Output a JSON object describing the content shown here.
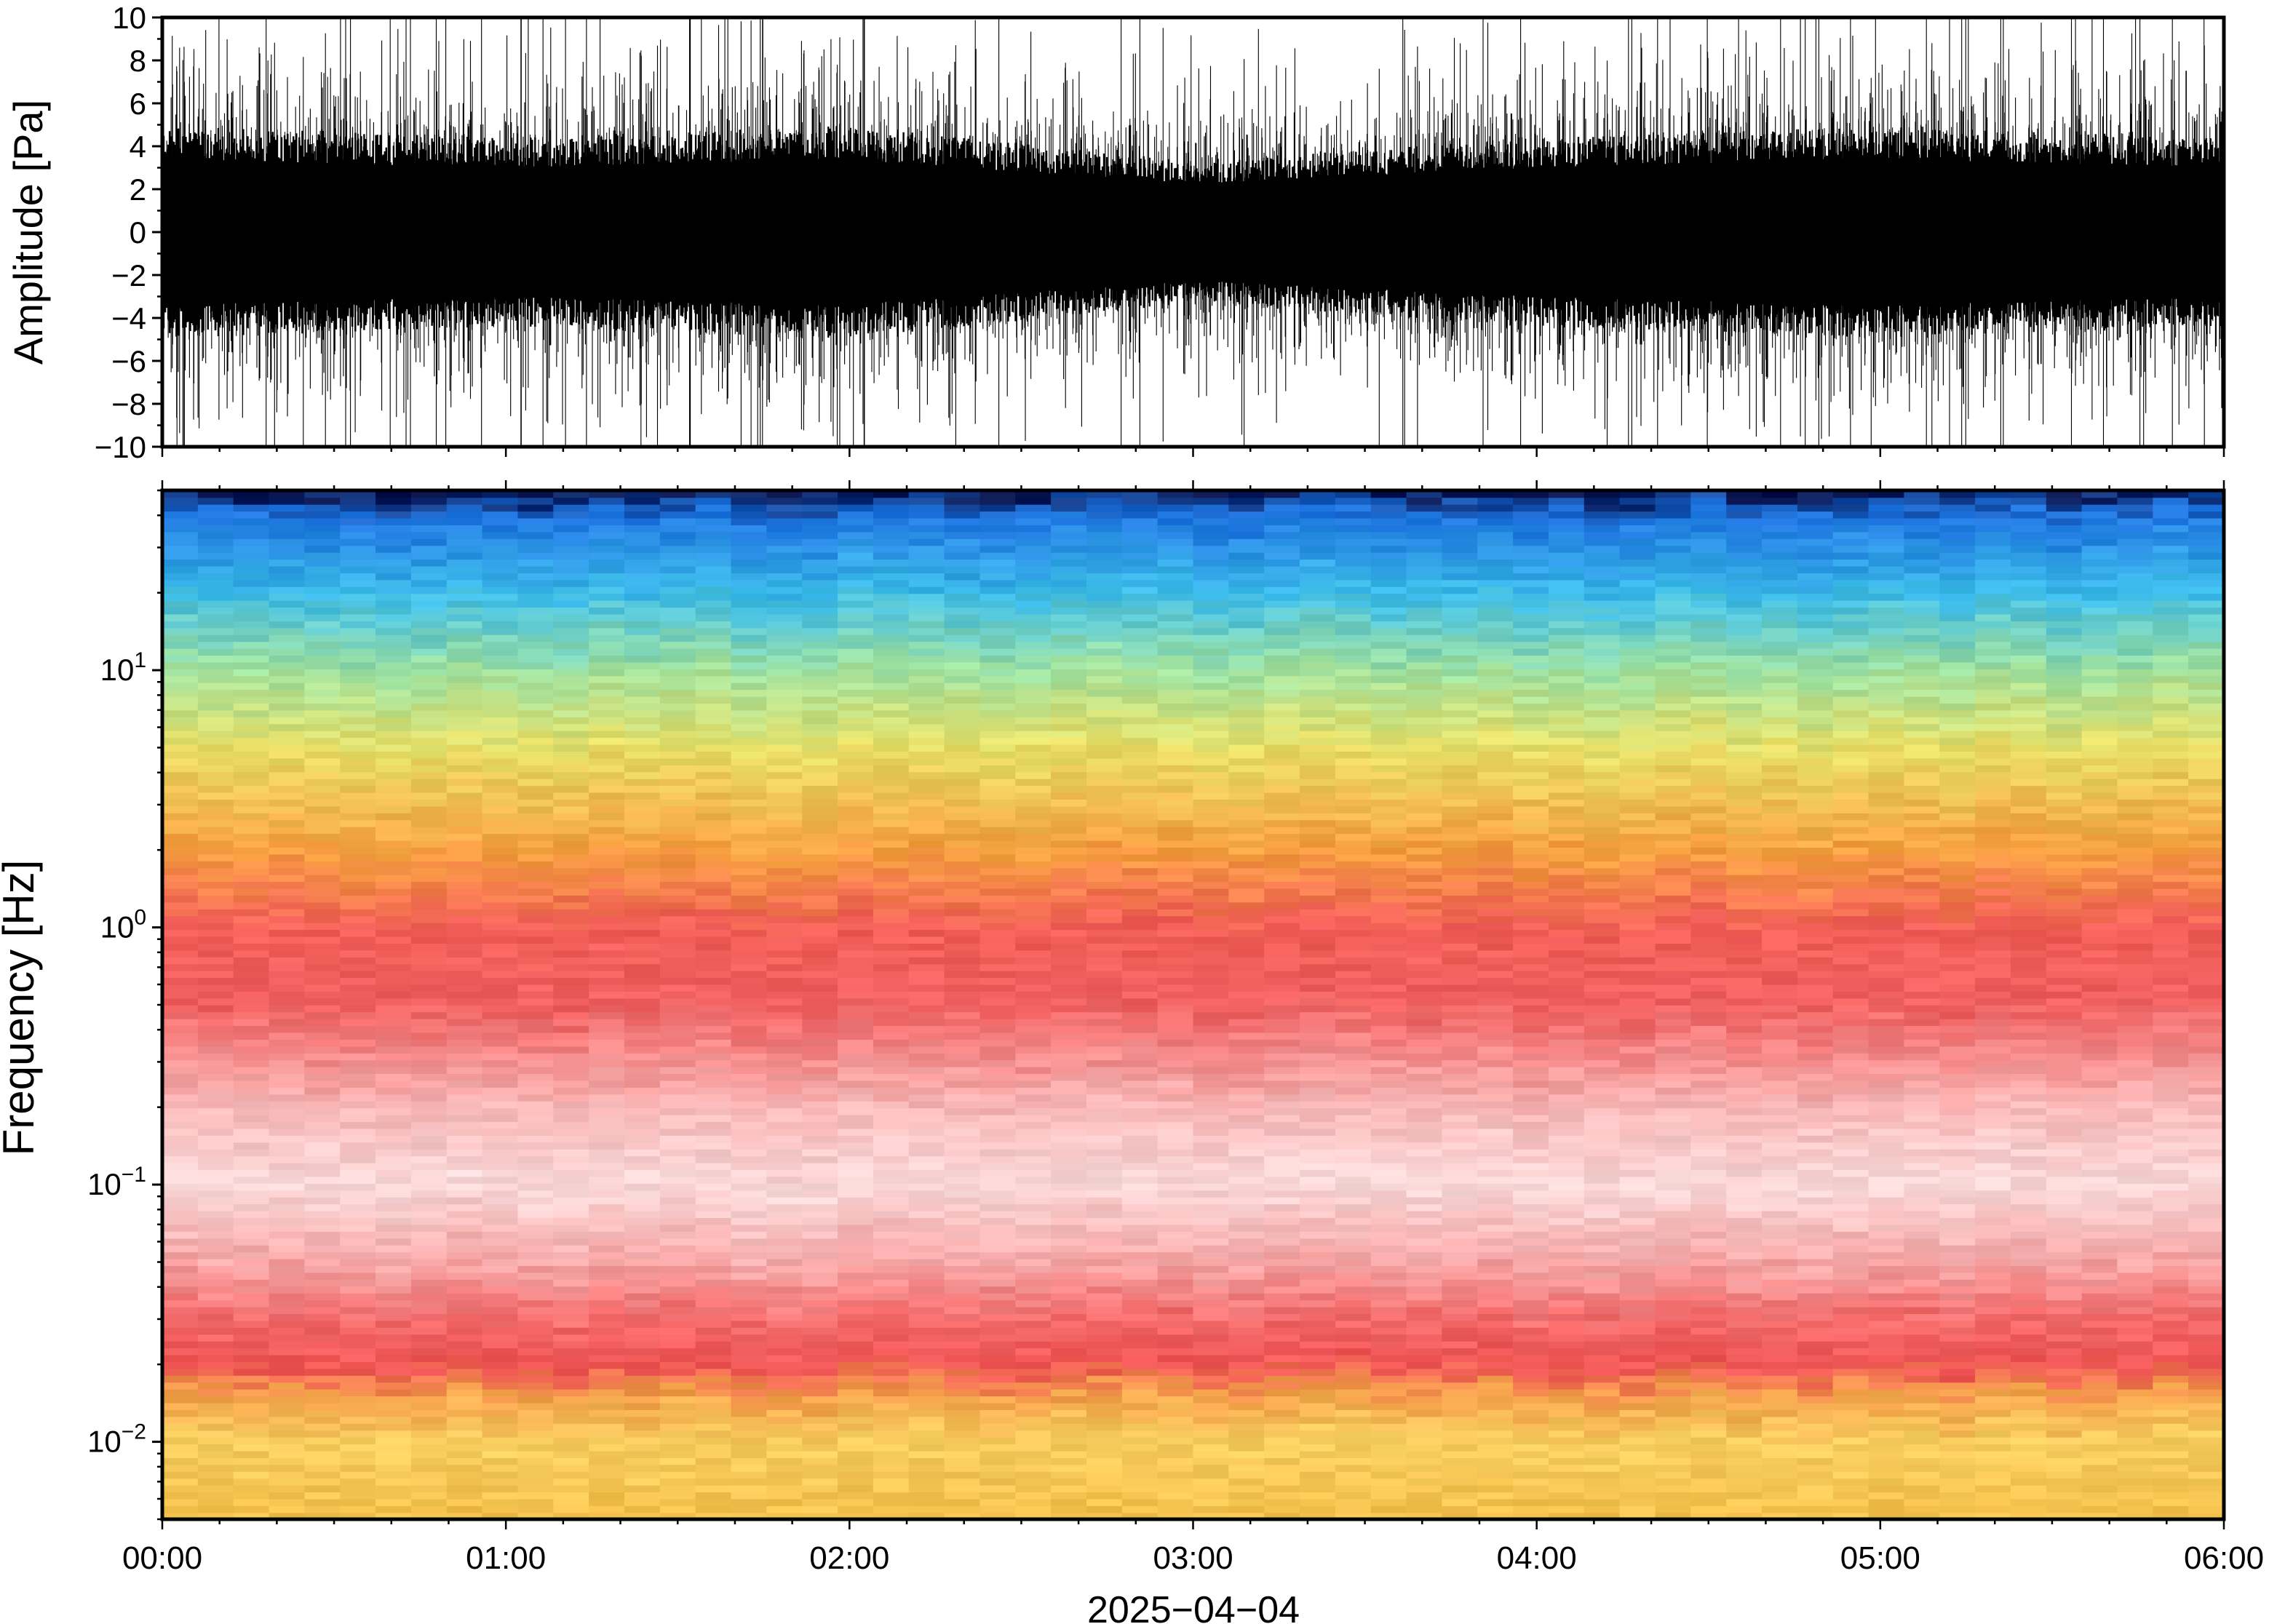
{
  "chart_data": [
    {
      "type": "line",
      "panel": "waveform",
      "ylabel": "Amplitude [Pa]",
      "ylim": [
        -10,
        10
      ],
      "yticks": [
        -10,
        -8,
        -6,
        -4,
        -2,
        0,
        2,
        4,
        6,
        8,
        10
      ],
      "ytick_labels": [
        "−10",
        "−8",
        "−6",
        "−4",
        "−2",
        "0",
        "2",
        "4",
        "6",
        "8",
        "10"
      ],
      "xlim": [
        "00:00",
        "06:00"
      ],
      "envelope_peak_abs_by_hour": {
        "x": [
          "00:00",
          "01:00",
          "02:00",
          "03:00",
          "04:00",
          "05:00",
          "06:00"
        ],
        "values": [
          10,
          10,
          10,
          10,
          10,
          10,
          10
        ]
      },
      "envelope_dense_core_abs_by_hour": {
        "x": [
          "00:00",
          "01:00",
          "02:00",
          "03:00",
          "04:00",
          "05:00",
          "06:00"
        ],
        "values": [
          4.5,
          4.0,
          4.5,
          3.0,
          4.0,
          4.5,
          4.0
        ]
      },
      "line_color": "#000000"
    },
    {
      "type": "heatmap",
      "panel": "spectrogram",
      "ylabel": "Frequency [Hz]",
      "yscale": "log",
      "ylim": [
        0.005,
        50
      ],
      "yticks": [
        0.01,
        0.1,
        1,
        10
      ],
      "ytick_labels": [
        {
          "base": "10",
          "exp": "−2"
        },
        {
          "base": "10",
          "exp": "−1"
        },
        {
          "base": "10",
          "exp": "0"
        },
        {
          "base": "10",
          "exp": "1"
        }
      ],
      "xlabel": "2025−04−04",
      "xlim": [
        "00:00",
        "06:00"
      ],
      "xticks": [
        "00:00",
        "01:00",
        "02:00",
        "03:00",
        "04:00",
        "05:00",
        "06:00"
      ],
      "time_columns": 58,
      "colormap": "rainbow",
      "profile_by_frequency": {
        "frequency_hz": [
          0.005,
          0.01,
          0.015,
          0.02,
          0.03,
          0.05,
          0.1,
          0.2,
          0.5,
          1,
          2,
          5,
          10,
          20,
          40,
          50
        ],
        "color": [
          "#f4c04c",
          "#f8cf60",
          "#f3a24a",
          "#f05555",
          "#f36a6a",
          "#f7a8a8",
          "#fbdada",
          "#f9b8b8",
          "#f06060",
          "#f25e58",
          "#f6a040",
          "#e8e068",
          "#a0e2a0",
          "#3cbcea",
          "#1e74e0",
          "#06124e"
        ]
      }
    }
  ]
}
